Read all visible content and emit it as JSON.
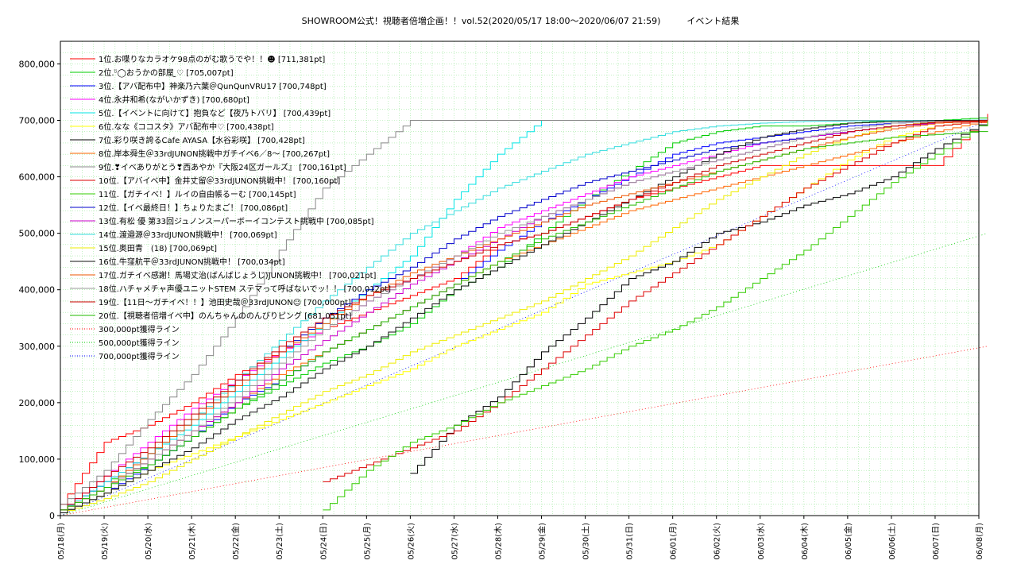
{
  "chart_data": {
    "type": "line",
    "title": "SHOWROOM公式！視聴者倍増企画！！vol.52(2020/05/17 18:00～2020/06/07 21:59)　　　イベント結果",
    "xlabel": "",
    "ylabel": "",
    "ylim": [
      0,
      840000
    ],
    "grid": true,
    "legend_position": "top-left",
    "x_ticks": [
      "05/18(月)",
      "05/19(火)",
      "05/20(水)",
      "05/21(木)",
      "05/22(金)",
      "05/23(土)",
      "05/24(日)",
      "05/25(月)",
      "05/26(火)",
      "05/27(水)",
      "05/28(木)",
      "05/29(金)",
      "05/30(土)",
      "05/31(日)",
      "06/01(月)",
      "06/02(火)",
      "06/03(水)",
      "06/04(木)",
      "06/05(金)",
      "06/06(土)",
      "06/07(日)",
      "06/08(月)"
    ],
    "y_ticks": [
      "0",
      "100,000",
      "200,000",
      "300,000",
      "400,000",
      "500,000",
      "600,000",
      "700,000",
      "800,000"
    ],
    "y_tick_values": [
      0,
      100000,
      200000,
      300000,
      400000,
      500000,
      600000,
      700000,
      800000
    ],
    "series": [
      {
        "name": "1位.お喋りなカラオケ98点のがむ歌うでや！！☻ [711,381pt]",
        "color": "#ff0000",
        "x": [
          0,
          1,
          2,
          3,
          4,
          5,
          6,
          7,
          8,
          9,
          10,
          11,
          12,
          13,
          14,
          15,
          16,
          17,
          18,
          19,
          20,
          21.2
        ],
        "y": [
          20000,
          130000,
          160000,
          200000,
          250000,
          290000,
          330000,
          360000,
          390000,
          420000,
          480000,
          500000,
          530000,
          560000,
          580000,
          600000,
          620000,
          620000,
          620000,
          620000,
          620000,
          711381
        ]
      },
      {
        "name": "2位.ᵕ̈◯おうかの部屋 ̫♡ [705,007pt]",
        "color": "#00cc00",
        "x": [
          0,
          1,
          2,
          3,
          4,
          5,
          6,
          7,
          8,
          9,
          10,
          11,
          12,
          13,
          14,
          15,
          16,
          17,
          18,
          19,
          20,
          21.2
        ],
        "y": [
          10000,
          60000,
          90000,
          140000,
          190000,
          230000,
          270000,
          300000,
          340000,
          400000,
          440000,
          500000,
          560000,
          610000,
          660000,
          680000,
          690000,
          690000,
          695000,
          700000,
          700000,
          705007
        ]
      },
      {
        "name": "3位.【アバ配布中】神楽乃六葉＠QunQunVRU17 [700,748pt]",
        "color": "#0000ff",
        "x": [
          0,
          1,
          2,
          3,
          4,
          5,
          6,
          7,
          8,
          9,
          10,
          11,
          12,
          13,
          14,
          15,
          16,
          17,
          18,
          19,
          20,
          21.2
        ],
        "y": [
          5000,
          40000,
          90000,
          140000,
          200000,
          240000,
          290000,
          330000,
          370000,
          410000,
          470000,
          520000,
          560000,
          600000,
          640000,
          660000,
          670000,
          680000,
          690000,
          695000,
          698000,
          700748
        ]
      },
      {
        "name": "4位.永井和希(ながいかずき) [700,680pt]",
        "color": "#ff00ff",
        "x": [
          0,
          1,
          2,
          3,
          4,
          5,
          6,
          7,
          8,
          9,
          10,
          11,
          12,
          13,
          14,
          15,
          16,
          17,
          18,
          19,
          20,
          21.2
        ],
        "y": [
          10000,
          70000,
          130000,
          190000,
          240000,
          290000,
          330000,
          380000,
          420000,
          460000,
          510000,
          540000,
          570000,
          600000,
          620000,
          640000,
          660000,
          670000,
          680000,
          690000,
          695000,
          700680
        ]
      },
      {
        "name": "5位.【イベントに向けて】抱負など【夜乃トバリ】 [700,439pt]",
        "color": "#00e5e5",
        "x": [
          0,
          1,
          2,
          3,
          4,
          5,
          6,
          7,
          8,
          9,
          10,
          11,
          12,
          13,
          14,
          15,
          16,
          17,
          18,
          19,
          20,
          21.2
        ],
        "y": [
          10000,
          60000,
          110000,
          160000,
          220000,
          280000,
          340000,
          400000,
          460000,
          560000,
          640000,
          700000,
          700000,
          700000,
          700000,
          700000,
          700000,
          700000,
          700000,
          700000,
          700000,
          700439
        ]
      },
      {
        "name": "6位.なな《ココスタ》アバ配布中♡ [700,438pt]",
        "color": "#ffff00",
        "x": [
          0,
          1,
          2,
          3,
          4,
          5,
          6,
          7,
          8,
          9,
          10,
          11,
          12,
          13,
          14,
          15,
          16,
          17,
          18,
          19,
          20,
          21.2
        ],
        "y": [
          5000,
          40000,
          80000,
          110000,
          140000,
          170000,
          200000,
          230000,
          260000,
          300000,
          330000,
          360000,
          410000,
          430000,
          450000,
          480000,
          530000,
          580000,
          630000,
          670000,
          690000,
          700438
        ]
      },
      {
        "name": "7位.彩り咲き誇るCafe AYASA【水谷彩咲】 [700,428pt]",
        "color": "#000000",
        "x": [
          8,
          9,
          10,
          11,
          12,
          13,
          14,
          15,
          16,
          17,
          18,
          19,
          20,
          21.2
        ],
        "y": [
          75000,
          160000,
          210000,
          290000,
          350000,
          420000,
          450000,
          500000,
          520000,
          550000,
          570000,
          600000,
          650000,
          700428
        ]
      },
      {
        "name": "8位.岸本舜生＠33rdJUNON挑戦中ガチイベ6／8～ [700,267pt]",
        "color": "#ff6600",
        "x": [
          0,
          1,
          2,
          3,
          4,
          5,
          6,
          7,
          8,
          9,
          10,
          11,
          12,
          13,
          14,
          15,
          16,
          17,
          18,
          19,
          20,
          21.2
        ],
        "y": [
          10000,
          50000,
          100000,
          150000,
          200000,
          250000,
          290000,
          330000,
          370000,
          410000,
          450000,
          480000,
          510000,
          540000,
          560000,
          580000,
          600000,
          620000,
          640000,
          660000,
          680000,
          700267
        ]
      },
      {
        "name": "9位.❣イベありがとう❣西あやか『大阪24区ガールズ』 [700,161pt]",
        "color": "#888888",
        "x": [
          0,
          1,
          2,
          3,
          4,
          5,
          6,
          7,
          8,
          9,
          10,
          11,
          12,
          13,
          14,
          15,
          16,
          17,
          18,
          19,
          20,
          21.2
        ],
        "y": [
          20000,
          80000,
          170000,
          250000,
          350000,
          470000,
          580000,
          640000,
          700000,
          700000,
          700000,
          700000,
          700000,
          700000,
          700000,
          700000,
          700000,
          700000,
          700000,
          700000,
          700000,
          700161
        ]
      },
      {
        "name": "10位.【アバイベ中】金井丈留＠33rdJUNON挑戦中！ [700,160pt]",
        "color": "#dd0000",
        "x": [
          6,
          7,
          8,
          9,
          10,
          11,
          12,
          13,
          14,
          15,
          16,
          17,
          18,
          19,
          20,
          21.2
        ],
        "y": [
          60000,
          90000,
          120000,
          150000,
          200000,
          260000,
          320000,
          380000,
          430000,
          480000,
          530000,
          580000,
          620000,
          660000,
          690000,
          700160
        ]
      },
      {
        "name": "11位.【ガチイベ！】ルイの自由帳るーむ [700,145pt]",
        "color": "#33cc00",
        "x": [
          6,
          7,
          8,
          9,
          10,
          11,
          12,
          13,
          14,
          15,
          16,
          17,
          18,
          19,
          20,
          21.2
        ],
        "y": [
          10000,
          80000,
          130000,
          160000,
          200000,
          230000,
          260000,
          300000,
          330000,
          370000,
          420000,
          470000,
          530000,
          590000,
          640000,
          700145
        ]
      },
      {
        "name": "12位.【イベ最終日！】ちょりたまご！ [700,086pt]",
        "color": "#0000cc",
        "x": [
          0,
          1,
          2,
          3,
          4,
          5,
          6,
          7,
          8,
          9,
          10,
          11,
          12,
          13,
          14,
          15,
          16,
          17,
          18,
          19,
          20,
          21.2
        ],
        "y": [
          10000,
          60000,
          110000,
          170000,
          230000,
          290000,
          350000,
          400000,
          440000,
          490000,
          530000,
          560000,
          590000,
          610000,
          630000,
          650000,
          660000,
          670000,
          680000,
          690000,
          695000,
          700086
        ]
      },
      {
        "name": "13位.有松 優 第33回ジュノンスーパーボーイコンテスト挑戦中 [700,085pt]",
        "color": "#cc00cc",
        "x": [
          0,
          1,
          2,
          3,
          4,
          5,
          6,
          7,
          8,
          9,
          10,
          11,
          12,
          13,
          14,
          15,
          16,
          17,
          18,
          19,
          20,
          21.2
        ],
        "y": [
          10000,
          50000,
          100000,
          150000,
          200000,
          260000,
          310000,
          360000,
          410000,
          450000,
          490000,
          530000,
          560000,
          590000,
          610000,
          630000,
          650000,
          670000,
          680000,
          690000,
          695000,
          700085
        ]
      },
      {
        "name": "14位.渡邉源＠33rdJUNON挑戦中！ [700,069pt]",
        "color": "#33dddd",
        "x": [
          0,
          1,
          2,
          3,
          4,
          5,
          6,
          7,
          8,
          9,
          10,
          11,
          12,
          13,
          14,
          15,
          16,
          17,
          18,
          19,
          20,
          21.2
        ],
        "y": [
          10000,
          60000,
          110000,
          170000,
          240000,
          310000,
          380000,
          440000,
          500000,
          540000,
          580000,
          610000,
          640000,
          660000,
          680000,
          690000,
          695000,
          698000,
          699000,
          699500,
          700000,
          700069
        ]
      },
      {
        "name": "15位.奥田青　(18) [700,069pt]",
        "color": "#eeee00",
        "x": [
          0,
          1,
          2,
          3,
          4,
          5,
          6,
          7,
          8,
          9,
          10,
          11,
          12,
          13,
          14,
          15,
          16,
          17,
          18,
          19,
          20,
          21.2
        ],
        "y": [
          5000,
          30000,
          60000,
          100000,
          140000,
          180000,
          220000,
          250000,
          290000,
          320000,
          350000,
          380000,
          420000,
          460000,
          510000,
          560000,
          600000,
          640000,
          670000,
          690000,
          698000,
          700069
        ]
      },
      {
        "name": "16位.牛窪航平＠33rdJUNON挑戦中！ [700,034pt]",
        "color": "#111111",
        "x": [
          0,
          1,
          2,
          3,
          4,
          5,
          6,
          7,
          8,
          9,
          10,
          11,
          12,
          13,
          14,
          15,
          16,
          17,
          18,
          19,
          20,
          21.2
        ],
        "y": [
          5000,
          40000,
          80000,
          120000,
          170000,
          210000,
          260000,
          300000,
          350000,
          400000,
          440000,
          480000,
          520000,
          560000,
          600000,
          640000,
          670000,
          685000,
          695000,
          698000,
          700000,
          700034
        ]
      },
      {
        "name": "17位.ガチイベ感謝！馬場丈治(ばんばじょうじ)JUNON挑戦中！ [700,021pt]",
        "color": "#ee5500",
        "x": [
          0,
          1,
          2,
          3,
          4,
          5,
          6,
          7,
          8,
          9,
          10,
          11,
          12,
          13,
          14,
          15,
          16,
          17,
          18,
          19,
          20,
          21.2
        ],
        "y": [
          10000,
          50000,
          110000,
          170000,
          230000,
          290000,
          340000,
          390000,
          430000,
          460000,
          490000,
          520000,
          550000,
          570000,
          590000,
          610000,
          630000,
          650000,
          670000,
          685000,
          695000,
          700021
        ]
      },
      {
        "name": "18位.ハチャメチャ声優ユニットSTEM ステマって呼ばないでッ！！ [700,012pt]",
        "color": "#999999",
        "x": [
          0,
          1,
          2,
          3,
          4,
          5,
          6,
          7,
          8,
          9,
          10,
          11,
          12,
          13,
          14,
          15,
          16,
          17,
          18,
          19,
          20,
          21.2
        ],
        "y": [
          10000,
          50000,
          100000,
          150000,
          210000,
          270000,
          330000,
          380000,
          420000,
          460000,
          500000,
          530000,
          560000,
          590000,
          610000,
          630000,
          650000,
          670000,
          685000,
          695000,
          698000,
          700012
        ]
      },
      {
        "name": "19位.【11日～ガチイベ！！】池田史哉＠33rdJUNON☺ [700,000pt]",
        "color": "#cc0000",
        "x": [
          0,
          1,
          2,
          3,
          4,
          5,
          6,
          7,
          8,
          9,
          10,
          11,
          12,
          13,
          14,
          15,
          16,
          17,
          18,
          19,
          20,
          21.2
        ],
        "y": [
          10000,
          70000,
          120000,
          180000,
          240000,
          300000,
          350000,
          390000,
          420000,
          450000,
          480000,
          500000,
          530000,
          560000,
          590000,
          620000,
          640000,
          660000,
          680000,
          690000,
          697000,
          700000
        ]
      },
      {
        "name": "20位.【視聴者倍増イベ中】のんちゃんののんびりピング [681,051pt]",
        "color": "#22bb00",
        "x": [
          0,
          1,
          2,
          3,
          4,
          5,
          6,
          7,
          8,
          9,
          10,
          11,
          12,
          13,
          14,
          15,
          16,
          17,
          18,
          19,
          20,
          21.2
        ],
        "y": [
          10000,
          50000,
          90000,
          140000,
          190000,
          240000,
          290000,
          330000,
          370000,
          410000,
          450000,
          490000,
          520000,
          550000,
          580000,
          610000,
          630000,
          650000,
          660000,
          670000,
          675000,
          681051
        ]
      }
    ],
    "reference_lines": [
      {
        "name": "300,000pt獲得ライン",
        "color": "#ff0000",
        "x": [
          0,
          21.2
        ],
        "y": [
          0,
          300000
        ]
      },
      {
        "name": "500,000pt獲得ライン",
        "color": "#00cc00",
        "x": [
          0,
          21.2
        ],
        "y": [
          0,
          500000
        ]
      },
      {
        "name": "700,000pt獲得ライン",
        "color": "#0000ff",
        "x": [
          0,
          21.2
        ],
        "y": [
          0,
          700000
        ]
      }
    ]
  }
}
